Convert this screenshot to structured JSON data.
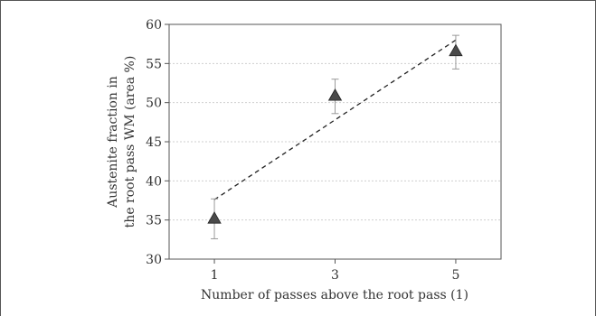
{
  "chart_data": {
    "type": "scatter",
    "xlabel": "Number of passes above the root pass (1)",
    "ylabel_lines": [
      "Austenite fraction in",
      "the root pass WM (area %)"
    ],
    "xlim": [
      0.25,
      5.75
    ],
    "ylim": [
      30,
      60
    ],
    "xticks": [
      1,
      3,
      5
    ],
    "yticks": [
      30,
      35,
      40,
      45,
      50,
      55,
      60
    ],
    "grid": "horizontal dotted",
    "points": [
      {
        "x": 1,
        "y": 35.2,
        "err_low": 32.6,
        "err_high": 37.7
      },
      {
        "x": 3,
        "y": 50.9,
        "err_low": 48.6,
        "err_high": 53.0
      },
      {
        "x": 5,
        "y": 56.6,
        "err_low": 54.3,
        "err_high": 58.6
      }
    ],
    "trendline": {
      "style": "dashed",
      "x": [
        1,
        5
      ],
      "y": [
        37.6,
        58.0
      ]
    },
    "marker": "triangle",
    "colors": {
      "marker": "#4a4a4a",
      "error_bar": "#9a9a9a",
      "trend": "#222222",
      "grid": "#cfcfcf",
      "axis": "#555555"
    }
  }
}
